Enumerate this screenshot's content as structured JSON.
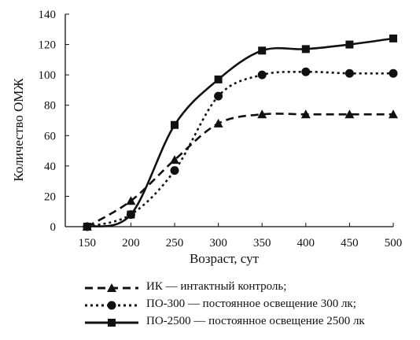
{
  "chart_data": {
    "type": "line",
    "title": "",
    "xlabel": "Возраст, сут",
    "ylabel": "Количество ОМЖ",
    "xlim": [
      125,
      500
    ],
    "ylim": [
      0,
      140
    ],
    "x_ticks": [
      "150",
      "200",
      "250",
      "300",
      "350",
      "400",
      "450",
      "500"
    ],
    "y_ticks": [
      "0",
      "20",
      "40",
      "60",
      "80",
      "100",
      "120",
      "140"
    ],
    "grid": false,
    "legend_position": "bottom",
    "series": [
      {
        "name": "ИК — интактный контроль;",
        "marker": "triangle",
        "line_style": "dashed",
        "x": [
          150,
          200,
          250,
          300,
          350,
          400,
          450,
          500
        ],
        "y": [
          0,
          17,
          44,
          68,
          74,
          74,
          74,
          74
        ]
      },
      {
        "name": "ПО-300 — постоянное освещение 300 лк;",
        "marker": "circle",
        "line_style": "dotted",
        "x": [
          150,
          200,
          250,
          300,
          350,
          400,
          450,
          500
        ],
        "y": [
          0,
          8,
          37,
          86,
          100,
          102,
          101,
          101
        ]
      },
      {
        "name": "ПО-2500 — постоянное освещение 2500 лк",
        "marker": "square",
        "line_style": "solid",
        "x": [
          150,
          200,
          250,
          300,
          350,
          400,
          450,
          500
        ],
        "y": [
          0,
          8,
          67,
          97,
          116,
          117,
          120,
          124
        ]
      }
    ]
  },
  "colors": {
    "ink": "#111111"
  }
}
